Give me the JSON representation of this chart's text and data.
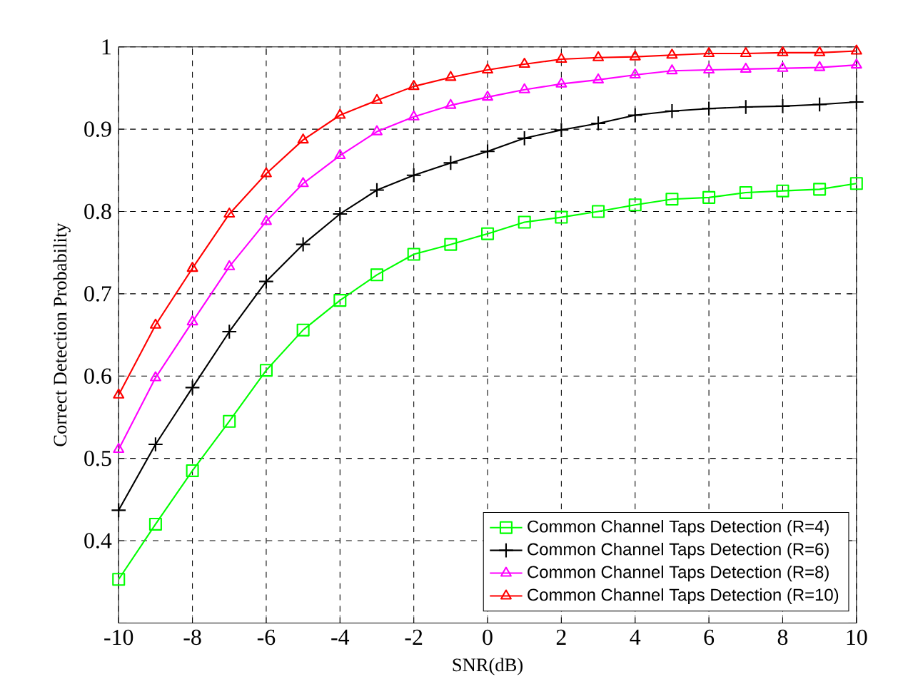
{
  "chart_data": {
    "type": "line",
    "xlabel": "SNR(dB)",
    "ylabel": "Correct Detection Probability",
    "x": [
      -10,
      -9,
      -8,
      -7,
      -6,
      -5,
      -4,
      -3,
      -2,
      -1,
      0,
      1,
      2,
      3,
      4,
      5,
      6,
      7,
      8,
      9,
      10
    ],
    "series": [
      {
        "name": "Common Channel Taps Detection (R=4)",
        "color": "#00ff00",
        "marker": "square",
        "values": [
          0.353,
          0.42,
          0.485,
          0.545,
          0.607,
          0.656,
          0.692,
          0.723,
          0.748,
          0.76,
          0.773,
          0.787,
          0.793,
          0.8,
          0.808,
          0.815,
          0.817,
          0.823,
          0.825,
          0.827,
          0.834
        ]
      },
      {
        "name": "Common Channel Taps Detection (R=6)",
        "color": "#000000",
        "marker": "cross",
        "values": [
          0.437,
          0.517,
          0.586,
          0.654,
          0.715,
          0.76,
          0.797,
          0.826,
          0.844,
          0.859,
          0.873,
          0.889,
          0.899,
          0.907,
          0.917,
          0.922,
          0.925,
          0.927,
          0.928,
          0.93,
          0.933
        ]
      },
      {
        "name": "Common Channel Taps Detection (R=8)",
        "color": "#ff00ff",
        "marker": "triangle",
        "values": [
          0.511,
          0.598,
          0.666,
          0.733,
          0.788,
          0.834,
          0.868,
          0.897,
          0.915,
          0.929,
          0.939,
          0.948,
          0.955,
          0.96,
          0.966,
          0.971,
          0.972,
          0.973,
          0.974,
          0.975,
          0.978
        ]
      },
      {
        "name": "Common Channel Taps Detection (R=10)",
        "color": "#ff0000",
        "marker": "triangle",
        "values": [
          0.577,
          0.662,
          0.731,
          0.797,
          0.846,
          0.887,
          0.917,
          0.935,
          0.952,
          0.963,
          0.972,
          0.979,
          0.985,
          0.987,
          0.988,
          0.99,
          0.992,
          0.992,
          0.993,
          0.993,
          0.995
        ]
      }
    ],
    "xlim": [
      -10,
      10
    ],
    "ylim": [
      0.3,
      1
    ],
    "xticks": [
      -10,
      -8,
      -6,
      -4,
      -2,
      0,
      2,
      4,
      6,
      8,
      10
    ],
    "yticks": [
      {
        "value": 0.3,
        "label": null
      },
      0.4,
      0.5,
      0.6,
      0.7,
      0.8,
      0.9,
      1
    ],
    "grid": true,
    "legend": "bottom right",
    "line_style": "solid"
  }
}
